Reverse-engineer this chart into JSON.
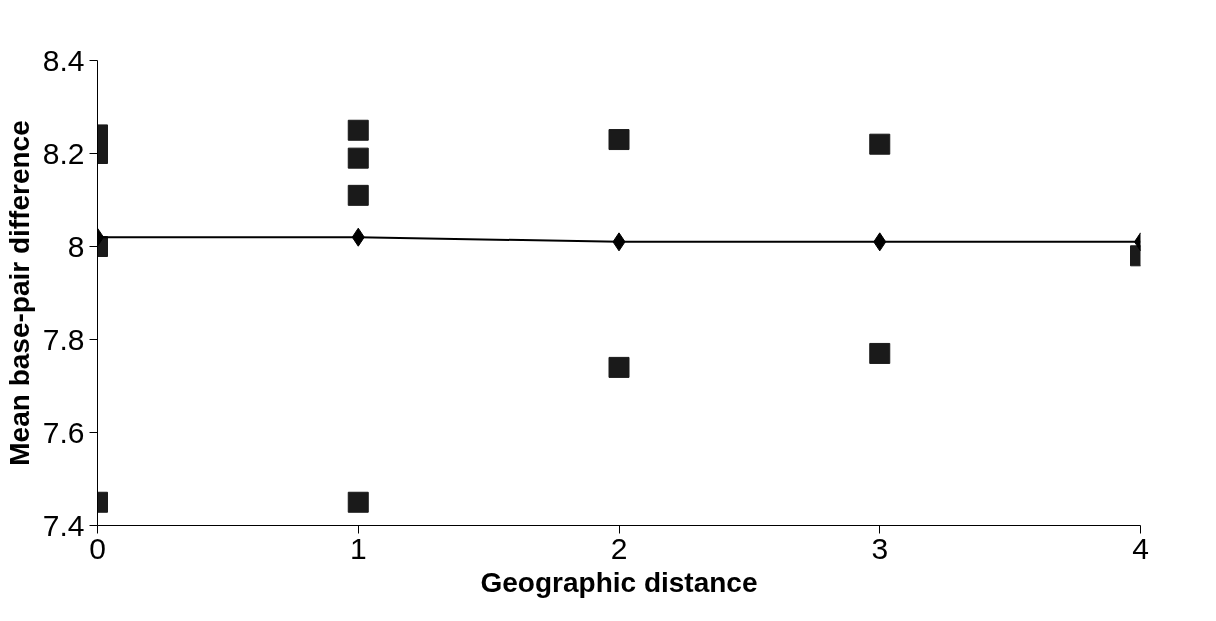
{
  "chart_data": {
    "type": "scatter",
    "xlabel": "Geographic distance",
    "ylabel": "Mean base-pair difference",
    "xlim": [
      0,
      4
    ],
    "ylim": [
      7.4,
      8.4
    ],
    "xticks": [
      0,
      1,
      2,
      3,
      4
    ],
    "yticks": [
      7.4,
      7.6,
      7.8,
      8,
      8.2,
      8.4
    ],
    "grid": false,
    "series": [
      {
        "marker": "square",
        "color": "#1a1a1a",
        "x": [
          0,
          0,
          0,
          0,
          1,
          1,
          1,
          1,
          2,
          2,
          3,
          3,
          4
        ],
        "values": [
          8.24,
          8.2,
          8.0,
          7.45,
          8.25,
          8.19,
          8.11,
          7.45,
          8.23,
          7.74,
          8.22,
          7.77,
          7.98
        ]
      },
      {
        "type": "line",
        "marker": "diamond",
        "color": "#000000",
        "x": [
          0,
          1,
          2,
          3,
          4
        ],
        "values": [
          8.02,
          8.02,
          8.01,
          8.01,
          8.01
        ]
      }
    ]
  }
}
